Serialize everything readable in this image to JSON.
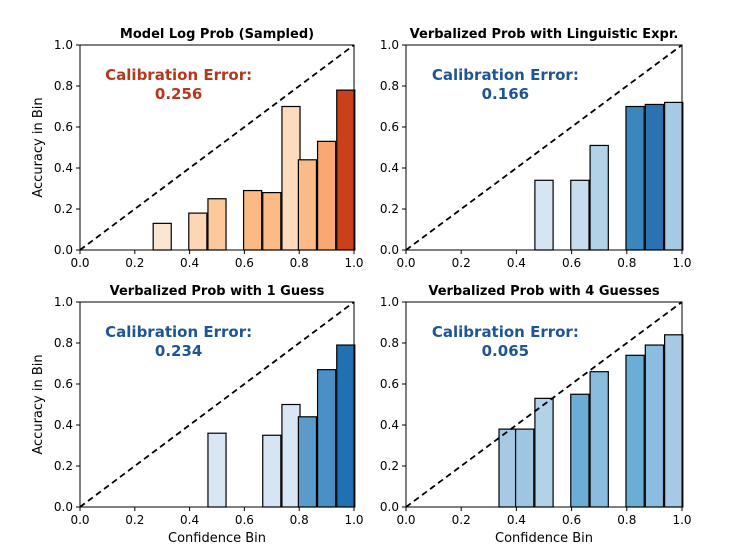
{
  "chart_data": [
    {
      "type": "bar",
      "title": "Model Log Prob (Sampled)",
      "annotation": {
        "label": "Calibration Error:",
        "value": "0.256",
        "color": "#b5381b"
      },
      "xlabel": "",
      "ylabel": "Accuracy in Bin",
      "xlim": [
        0,
        1
      ],
      "ylim": [
        0,
        1
      ],
      "xticks": [
        "0.0",
        "0.2",
        "0.4",
        "0.6",
        "0.8",
        "1.0"
      ],
      "yticks": [
        "0.0",
        "0.2",
        "0.4",
        "0.6",
        "0.8",
        "1.0"
      ],
      "bin_width": 0.066,
      "bars": [
        {
          "x": 0.3,
          "value": 0.13,
          "color": "#fde6d1"
        },
        {
          "x": 0.43,
          "value": 0.18,
          "color": "#fdd6b5"
        },
        {
          "x": 0.5,
          "value": 0.25,
          "color": "#fcc89c"
        },
        {
          "x": 0.63,
          "value": 0.29,
          "color": "#fbb984"
        },
        {
          "x": 0.7,
          "value": 0.28,
          "color": "#fbba86"
        },
        {
          "x": 0.77,
          "value": 0.7,
          "color": "#fddbbd"
        },
        {
          "x": 0.83,
          "value": 0.44,
          "color": "#fbbb86"
        },
        {
          "x": 0.9,
          "value": 0.53,
          "color": "#f9a872"
        },
        {
          "x": 0.97,
          "value": 0.78,
          "color": "#c9401a"
        }
      ],
      "diagonal": "dashed"
    },
    {
      "type": "bar",
      "title": "Verbalized Prob with Linguistic Expr.",
      "annotation": {
        "label": "Calibration Error:",
        "value": "0.166",
        "color": "#1f5591"
      },
      "xlabel": "",
      "ylabel": "",
      "xlim": [
        0,
        1
      ],
      "ylim": [
        0,
        1
      ],
      "xticks": [
        "0.0",
        "0.2",
        "0.4",
        "0.6",
        "0.8",
        "1.0"
      ],
      "yticks": [
        "0.0",
        "0.2",
        "0.4",
        "0.6",
        "0.8",
        "1.0"
      ],
      "bin_width": 0.066,
      "bars": [
        {
          "x": 0.5,
          "value": 0.34,
          "color": "#d6e5f4"
        },
        {
          "x": 0.63,
          "value": 0.34,
          "color": "#c7dcef"
        },
        {
          "x": 0.7,
          "value": 0.51,
          "color": "#b2d2e8"
        },
        {
          "x": 0.83,
          "value": 0.7,
          "color": "#3a86bf"
        },
        {
          "x": 0.9,
          "value": 0.71,
          "color": "#2a72b2"
        },
        {
          "x": 0.97,
          "value": 0.72,
          "color": "#a6c9e4"
        }
      ],
      "diagonal": "dashed"
    },
    {
      "type": "bar",
      "title": "Verbalized Prob with 1 Guess",
      "annotation": {
        "label": "Calibration Error:",
        "value": "0.234",
        "color": "#1f5591"
      },
      "xlabel": "Confidence Bin",
      "ylabel": "Accuracy in Bin",
      "xlim": [
        0,
        1
      ],
      "ylim": [
        0,
        1
      ],
      "xticks": [
        "0.0",
        "0.2",
        "0.4",
        "0.6",
        "0.8",
        "1.0"
      ],
      "yticks": [
        "0.0",
        "0.2",
        "0.4",
        "0.6",
        "0.8",
        "1.0"
      ],
      "bin_width": 0.066,
      "bars": [
        {
          "x": 0.5,
          "value": 0.36,
          "color": "#d9e7f5"
        },
        {
          "x": 0.7,
          "value": 0.35,
          "color": "#d6e5f4"
        },
        {
          "x": 0.77,
          "value": 0.5,
          "color": "#d9e7f5"
        },
        {
          "x": 0.83,
          "value": 0.44,
          "color": "#5a9bcb"
        },
        {
          "x": 0.9,
          "value": 0.67,
          "color": "#4a90c6"
        },
        {
          "x": 0.97,
          "value": 0.79,
          "color": "#2170b1"
        }
      ],
      "diagonal": "dashed"
    },
    {
      "type": "bar",
      "title": "Verbalized Prob with 4 Guesses",
      "annotation": {
        "label": "Calibration Error:",
        "value": "0.065",
        "color": "#1f5591"
      },
      "xlabel": "Confidence Bin",
      "ylabel": "",
      "xlim": [
        0,
        1
      ],
      "ylim": [
        0,
        1
      ],
      "xticks": [
        "0.0",
        "0.2",
        "0.4",
        "0.6",
        "0.8",
        "1.0"
      ],
      "yticks": [
        "0.0",
        "0.2",
        "0.4",
        "0.6",
        "0.8",
        "1.0"
      ],
      "bin_width": 0.066,
      "bars": [
        {
          "x": 0.37,
          "value": 0.38,
          "color": "#a6c9e4"
        },
        {
          "x": 0.43,
          "value": 0.38,
          "color": "#9ec5e2"
        },
        {
          "x": 0.5,
          "value": 0.53,
          "color": "#b2d2e8"
        },
        {
          "x": 0.63,
          "value": 0.55,
          "color": "#6aaed6"
        },
        {
          "x": 0.7,
          "value": 0.66,
          "color": "#89bcdf"
        },
        {
          "x": 0.83,
          "value": 0.74,
          "color": "#6aaed6"
        },
        {
          "x": 0.9,
          "value": 0.79,
          "color": "#8bbde0"
        },
        {
          "x": 0.97,
          "value": 0.84,
          "color": "#a6c9e4"
        }
      ],
      "diagonal": "dashed"
    }
  ]
}
